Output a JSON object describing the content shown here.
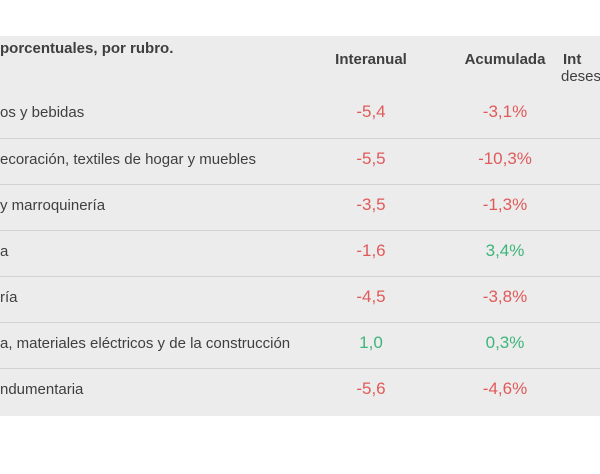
{
  "header": {
    "subtitle": "porcentuales, por rubro.",
    "col_interanual": "Interanual",
    "col_acumulada": "Acumulada",
    "col_extra_line1": "Int",
    "col_extra_line2": "deses"
  },
  "colors": {
    "negative": "#e05a5a",
    "positive": "#3fb57a",
    "panel": "#ececec"
  },
  "rows": [
    {
      "label": "os y bebidas",
      "interanual": "-5,4",
      "acumulada": "-3,1%",
      "inter_sign": "neg",
      "acum_sign": "neg"
    },
    {
      "label": "ecoración, textiles de hogar y muebles",
      "interanual": "-5,5",
      "acumulada": "-10,3%",
      "inter_sign": "neg",
      "acum_sign": "neg"
    },
    {
      "label": "y marroquinería",
      "interanual": "-3,5",
      "acumulada": "-1,3%",
      "inter_sign": "neg",
      "acum_sign": "neg"
    },
    {
      "label": "a",
      "interanual": "-1,6",
      "acumulada": "3,4%",
      "inter_sign": "neg",
      "acum_sign": "pos"
    },
    {
      "label": "ría",
      "interanual": "-4,5",
      "acumulada": "-3,8%",
      "inter_sign": "neg",
      "acum_sign": "neg"
    },
    {
      "label": "a, materiales eléctricos y de la construcción",
      "interanual": "1,0",
      "acumulada": "0,3%",
      "inter_sign": "pos",
      "acum_sign": "pos"
    },
    {
      "label": "ndumentaria",
      "interanual": "-5,6",
      "acumulada": "-4,6%",
      "inter_sign": "neg",
      "acum_sign": "neg"
    }
  ]
}
